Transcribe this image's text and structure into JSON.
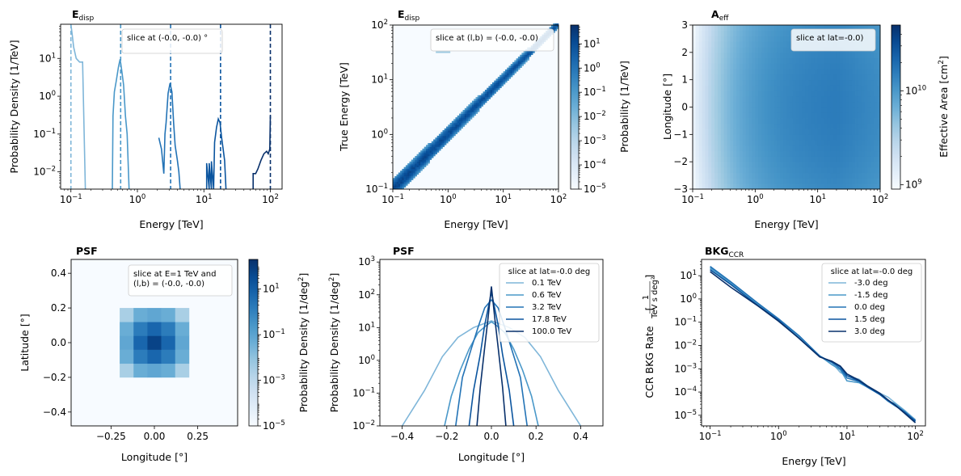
{
  "colors": {
    "blues": [
      "#f7fbff",
      "#deebf7",
      "#c6dbef",
      "#9ecae1",
      "#6baed6",
      "#4292c6",
      "#2171b5",
      "#08519c",
      "#08306b"
    ],
    "series5": [
      "#7fb6d9",
      "#4a98c9",
      "#2373b6",
      "#0b559f",
      "#08306b"
    ]
  },
  "chart_data": [
    {
      "id": "edisp-1d",
      "type": "line",
      "title": "E",
      "title_sub": "disp",
      "xlabel": "Energy [TeV]",
      "ylabel": "Probability Density [1/TeV]",
      "xscale": "log",
      "yscale": "log",
      "xlim": [
        0.07,
        150
      ],
      "ylim": [
        0.0035,
        80
      ],
      "xticks": [
        {
          "v": 0.1,
          "t": "10",
          "e": "−1"
        },
        {
          "v": 1,
          "t": "10",
          "e": "0"
        },
        {
          "v": 10,
          "t": "10",
          "e": "1"
        },
        {
          "v": 100,
          "t": "10",
          "e": "2"
        }
      ],
      "yticks": [
        {
          "v": 0.01,
          "t": "10",
          "e": "−2"
        },
        {
          "v": 0.1,
          "t": "10",
          "e": "−1"
        },
        {
          "v": 1,
          "t": "10",
          "e": "0"
        },
        {
          "v": 10,
          "t": "10",
          "e": "1"
        }
      ],
      "annotation": "slice at (-0.0, -0.0) °",
      "vlines": [
        0.1,
        0.56,
        3.16,
        17.8,
        100
      ],
      "series": [
        {
          "x": [
            0.1,
            0.105,
            0.11,
            0.12,
            0.135,
            0.15,
            0.165
          ],
          "y": [
            80,
            40,
            20,
            10,
            8,
            8,
            0.0035
          ]
        },
        {
          "x": [
            0.42,
            0.43,
            0.45,
            0.48,
            0.52,
            0.55,
            0.58,
            0.62,
            0.66,
            0.7,
            0.75
          ],
          "y": [
            0.0035,
            0.3,
            1.3,
            2.5,
            6,
            9.5,
            5,
            2,
            0.3,
            0.1,
            0.0035
          ]
        },
        {
          "x": [
            2.1,
            2.3,
            2.5,
            2.6,
            2.7,
            2.9,
            3.1,
            3.3,
            3.5,
            3.7,
            4.0,
            4.2,
            4.4
          ],
          "y": [
            0.08,
            0.04,
            0.009,
            0.1,
            0.2,
            1.2,
            2.2,
            1.3,
            0.2,
            0.05,
            0.02,
            0.01,
            0.0035
          ]
        },
        {
          "x": [
            11,
            11,
            12,
            12,
            13,
            13,
            14,
            14.5,
            15.5,
            16.5,
            17.5,
            18.5,
            19.5,
            20.5,
            21.5
          ],
          "y": [
            0.0035,
            0.017,
            0.0035,
            0.017,
            0.0035,
            0.019,
            0.0035,
            0.06,
            0.15,
            0.25,
            0.2,
            0.08,
            0.04,
            0.02,
            0.0035
          ]
        },
        {
          "x": [
            55,
            55,
            60,
            65,
            72,
            80,
            88,
            93,
            98,
            100
          ],
          "y": [
            0.0035,
            0.009,
            0.009,
            0.012,
            0.02,
            0.03,
            0.035,
            0.03,
            0.04,
            0.3
          ]
        }
      ]
    },
    {
      "id": "edisp-2d",
      "type": "heatmap",
      "title": "E",
      "title_sub": "disp",
      "xlabel": "Energy [TeV]",
      "ylabel": "True Energy [TeV]",
      "xscale": "log",
      "yscale": "log",
      "xlim": [
        0.1,
        100
      ],
      "ylim": [
        0.1,
        100
      ],
      "xticks": [
        {
          "v": 0.1,
          "t": "10",
          "e": "−1"
        },
        {
          "v": 1,
          "t": "10",
          "e": "0"
        },
        {
          "v": 10,
          "t": "10",
          "e": "1"
        },
        {
          "v": 100,
          "t": "10",
          "e": "2"
        }
      ],
      "yticks": [
        {
          "v": 0.1,
          "t": "10",
          "e": "−1"
        },
        {
          "v": 1,
          "t": "10",
          "e": "0"
        },
        {
          "v": 10,
          "t": "10",
          "e": "1"
        },
        {
          "v": 100,
          "t": "10",
          "e": "2"
        }
      ],
      "annotation": "slice at (l,b) = (-0.0, -0.0)",
      "colorbar": {
        "label": "Probability [1/TeV]",
        "scale": "log",
        "range": [
          1e-05,
          60
        ],
        "ticks": [
          {
            "v": 1e-05,
            "t": "10",
            "e": "−5"
          },
          {
            "v": 0.0001,
            "t": "10",
            "e": "−4"
          },
          {
            "v": 0.001,
            "t": "10",
            "e": "−3"
          },
          {
            "v": 0.01,
            "t": "10",
            "e": "−2"
          },
          {
            "v": 0.1,
            "t": "10",
            "e": "−1"
          },
          {
            "v": 1,
            "t": "10",
            "e": "0"
          },
          {
            "v": 10,
            "t": "10",
            "e": "1"
          }
        ]
      }
    },
    {
      "id": "aeff",
      "type": "heatmap",
      "title": "A",
      "title_sub": "eff",
      "xlabel": "Energy [TeV]",
      "ylabel": "Longitude [°]",
      "xscale": "log",
      "yscale": "linear",
      "xlim": [
        0.1,
        100
      ],
      "ylim": [
        -3,
        3
      ],
      "xticks": [
        {
          "v": 0.1,
          "t": "10",
          "e": "−1"
        },
        {
          "v": 1,
          "t": "10",
          "e": "0"
        },
        {
          "v": 10,
          "t": "10",
          "e": "1"
        },
        {
          "v": 100,
          "t": "10",
          "e": "2"
        }
      ],
      "yticks": [
        {
          "v": -3,
          "t": "−3"
        },
        {
          "v": -2,
          "t": "−2"
        },
        {
          "v": -1,
          "t": "−1"
        },
        {
          "v": 0,
          "t": "0"
        },
        {
          "v": 1,
          "t": "1"
        },
        {
          "v": 2,
          "t": "2"
        },
        {
          "v": 3,
          "t": "3"
        }
      ],
      "annotation": "slice at lat=-0.0)",
      "colorbar": {
        "label": "Effective Area [cm",
        "label_sup": "2",
        "label_end": "]",
        "scale": "log",
        "range": [
          900000000,
          50000000000
        ],
        "ticks": [
          {
            "v": 1000000000,
            "t": "10",
            "e": "9"
          },
          {
            "v": 10000000000,
            "t": "10",
            "e": "10"
          }
        ]
      }
    },
    {
      "id": "psf-2d",
      "type": "heatmap",
      "title": "PSF",
      "xlabel": "Longitude [°]",
      "ylabel": "Latitude [°]",
      "xscale": "linear",
      "yscale": "linear",
      "xlim": [
        -0.48,
        0.48
      ],
      "ylim": [
        -0.48,
        0.48
      ],
      "xticks": [
        {
          "v": -0.25,
          "t": "−0.25"
        },
        {
          "v": 0,
          "t": "0.00"
        },
        {
          "v": 0.25,
          "t": "0.25"
        }
      ],
      "yticks": [
        {
          "v": -0.4,
          "t": "−0.4"
        },
        {
          "v": -0.2,
          "t": "−0.2"
        },
        {
          "v": 0,
          "t": "0.0"
        },
        {
          "v": 0.2,
          "t": "0.2"
        },
        {
          "v": 0.4,
          "t": "0.4"
        }
      ],
      "annotation": [
        "slice at E=1 TeV and",
        "(l,b) = (-0.0, -0.0)"
      ],
      "cells": {
        "x_edges": [
          -0.2,
          -0.12,
          -0.04,
          0.04,
          0.12,
          0.2
        ],
        "y_edges": [
          -0.2,
          -0.12,
          -0.04,
          0.04,
          0.12,
          0.2
        ],
        "values": [
          [
            0.003,
            0.05,
            0.08,
            0.05,
            0.003
          ],
          [
            0.05,
            1.5,
            6,
            1.5,
            0.05
          ],
          [
            0.08,
            6,
            60,
            6,
            0.08
          ],
          [
            0.05,
            1.5,
            6,
            1.5,
            0.05
          ],
          [
            0.003,
            0.05,
            0.08,
            0.05,
            0.003
          ]
        ]
      },
      "colorbar": {
        "label": "Probability Density [1/deg",
        "label_sup": "2",
        "label_end": "]",
        "scale": "log",
        "range": [
          1e-05,
          200
        ],
        "ticks": [
          {
            "v": 1e-05,
            "t": "10",
            "e": "−5"
          },
          {
            "v": 0.001,
            "t": "10",
            "e": "−3"
          },
          {
            "v": 0.1,
            "t": "10",
            "e": "−1"
          },
          {
            "v": 10,
            "t": "10",
            "e": "1"
          }
        ]
      }
    },
    {
      "id": "psf-1d",
      "type": "line",
      "title": "PSF",
      "xlabel": "Longitude [°]",
      "ylabel": "Probability Density [1/deg",
      "ylabel_sup": "2",
      "ylabel_end": "]",
      "xscale": "linear",
      "yscale": "log",
      "xlim": [
        -0.5,
        0.5
      ],
      "ylim": [
        0.01,
        1200
      ],
      "xticks": [
        {
          "v": -0.4,
          "t": "−0.4"
        },
        {
          "v": -0.2,
          "t": "−0.2"
        },
        {
          "v": 0,
          "t": "0.0"
        },
        {
          "v": 0.2,
          "t": "0.2"
        },
        {
          "v": 0.4,
          "t": "0.4"
        }
      ],
      "yticks": [
        {
          "v": 0.01,
          "t": "10",
          "e": "−2"
        },
        {
          "v": 0.1,
          "t": "10",
          "e": "−1"
        },
        {
          "v": 1,
          "t": "10",
          "e": "0"
        },
        {
          "v": 10,
          "t": "10",
          "e": "1"
        },
        {
          "v": 100,
          "t": "10",
          "e": "2"
        },
        {
          "v": 1000,
          "t": "10",
          "e": "3"
        }
      ],
      "legend": {
        "title": "slice at lat=-0.0 deg",
        "loc": "upper right"
      },
      "series": [
        {
          "name": "0.1 TeV",
          "x": [
            -0.4,
            -0.3,
            -0.22,
            -0.15,
            -0.08,
            0,
            0.08,
            0.15,
            0.22,
            0.3,
            0.4
          ],
          "y": [
            0.01,
            0.12,
            1.3,
            5,
            10,
            16,
            10,
            5,
            1.3,
            0.12,
            0.01
          ]
        },
        {
          "name": "0.6 TeV",
          "x": [
            -0.21,
            -0.18,
            -0.14,
            -0.1,
            -0.06,
            -0.02,
            0,
            0.02,
            0.06,
            0.1,
            0.14,
            0.18,
            0.21
          ],
          "y": [
            0.01,
            0.08,
            0.5,
            2.2,
            7,
            12,
            15,
            12,
            7,
            2.2,
            0.5,
            0.08,
            0.01
          ]
        },
        {
          "name": "3.2 TeV",
          "x": [
            -0.16,
            -0.13,
            -0.09,
            -0.06,
            -0.03,
            0,
            0.03,
            0.06,
            0.09,
            0.13,
            0.16
          ],
          "y": [
            0.01,
            0.3,
            2.3,
            10,
            40,
            70,
            40,
            10,
            2.3,
            0.3,
            0.01
          ]
        },
        {
          "name": "17.8 TeV",
          "x": [
            -0.1,
            -0.08,
            -0.05,
            -0.03,
            0,
            0.03,
            0.05,
            0.08,
            0.1
          ],
          "y": [
            0.01,
            0.12,
            1.5,
            12,
            120,
            12,
            1.5,
            0.12,
            0.01
          ]
        },
        {
          "name": "100.0 TeV",
          "x": [
            -0.065,
            -0.05,
            -0.03,
            -0.015,
            0,
            0.015,
            0.03,
            0.05,
            0.065
          ],
          "y": [
            0.01,
            0.15,
            2.5,
            20,
            180,
            20,
            2.5,
            0.15,
            0.01
          ]
        }
      ]
    },
    {
      "id": "bkg",
      "type": "line",
      "title": "BKG",
      "title_sub": "CCR",
      "xlabel": "Energy [TeV]",
      "ylabel": "CCR BKG Rate",
      "ylabel_frac": [
        "1",
        "TeV s deg²"
      ],
      "xscale": "log",
      "yscale": "log",
      "xlim": [
        0.075,
        140
      ],
      "ylim": [
        3.5e-06,
        50
      ],
      "xticks": [
        {
          "v": 0.1,
          "t": "10",
          "e": "−1"
        },
        {
          "v": 1,
          "t": "10",
          "e": "0"
        },
        {
          "v": 10,
          "t": "10",
          "e": "1"
        },
        {
          "v": 100,
          "t": "10",
          "e": "2"
        }
      ],
      "yticks": [
        {
          "v": 1e-05,
          "t": "10",
          "e": "−5"
        },
        {
          "v": 0.0001,
          "t": "10",
          "e": "−4"
        },
        {
          "v": 0.001,
          "t": "10",
          "e": "−3"
        },
        {
          "v": 0.01,
          "t": "10",
          "e": "−2"
        },
        {
          "v": 0.1,
          "t": "10",
          "e": "−1"
        },
        {
          "v": 1,
          "t": "10",
          "e": "0"
        },
        {
          "v": 10,
          "t": "10",
          "e": "1"
        }
      ],
      "legend": {
        "title": "slice at lat=-0.0 deg",
        "loc": "upper right"
      },
      "series": [
        {
          "name": "-3.0 deg",
          "x": [
            0.1,
            0.2,
            0.5,
            1,
            2,
            4,
            6,
            8,
            10,
            15,
            20,
            30,
            40,
            50,
            70,
            100
          ],
          "y": [
            20,
            4.5,
            0.55,
            0.12,
            0.022,
            0.0035,
            0.0018,
            0.0007,
            0.0005,
            0.00035,
            0.00018,
            9e-05,
            6e-05,
            3.5e-05,
            1.6e-05,
            6.5e-06
          ]
        },
        {
          "name": "-1.5 deg",
          "x": [
            0.1,
            0.2,
            0.5,
            1,
            2,
            4,
            6,
            8,
            10,
            15,
            20,
            30,
            40,
            50,
            70,
            100
          ],
          "y": [
            22,
            4.8,
            0.6,
            0.13,
            0.024,
            0.0036,
            0.0015,
            0.0009,
            0.0003,
            0.00025,
            0.00016,
            8e-05,
            4e-05,
            3.2e-05,
            1.5e-05,
            5.5e-06
          ]
        },
        {
          "name": "0.0 deg",
          "x": [
            0.1,
            0.2,
            0.5,
            1,
            2,
            4,
            6,
            8,
            10,
            15,
            20,
            30,
            40,
            50,
            70,
            100
          ],
          "y": [
            25,
            5.5,
            0.65,
            0.14,
            0.026,
            0.0035,
            0.0019,
            0.001,
            0.0004,
            0.00028,
            0.00016,
            8e-05,
            4e-05,
            2.6e-05,
            1.4e-05,
            6e-06
          ]
        },
        {
          "name": "1.5 deg",
          "x": [
            0.1,
            0.2,
            0.5,
            1,
            2,
            4,
            6,
            8,
            10,
            15,
            20,
            30,
            40,
            50,
            70,
            100
          ],
          "y": [
            18,
            4.2,
            0.52,
            0.12,
            0.02,
            0.0033,
            0.002,
            0.0012,
            0.0005,
            0.0003,
            0.00017,
            8e-05,
            4.5e-05,
            2.8e-05,
            1.3e-05,
            5.5e-06
          ]
        },
        {
          "name": "3.0 deg",
          "x": [
            0.1,
            0.2,
            0.5,
            1,
            2,
            4,
            6,
            8,
            10,
            15,
            20,
            30,
            40,
            50,
            70,
            100
          ],
          "y": [
            15,
            3.2,
            0.5,
            0.11,
            0.02,
            0.0032,
            0.0021,
            0.0013,
            0.0006,
            0.00032,
            0.00018,
            9e-05,
            4.5e-05,
            2.8e-05,
            1.2e-05,
            4.8e-06
          ]
        }
      ]
    }
  ]
}
